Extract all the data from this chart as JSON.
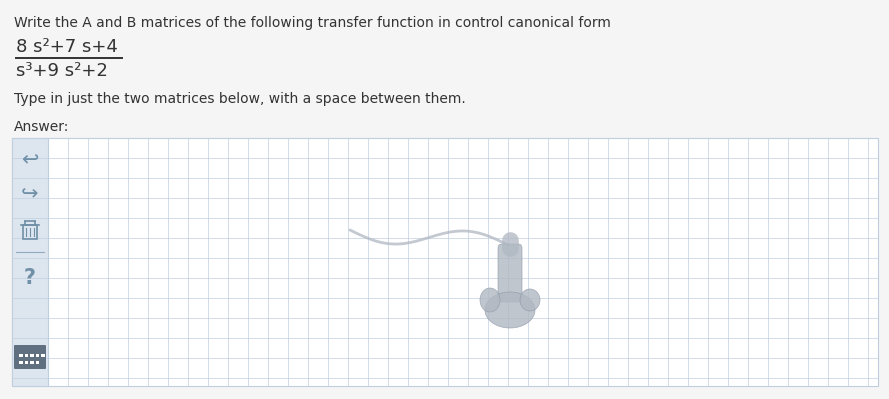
{
  "bg_color": "#f5f5f5",
  "text_color": "#333333",
  "question_text": "Write the A and B matrices of the following transfer function in control canonical form",
  "numerator": "8 s²+7 s+4",
  "denominator": "s³+9 s²+2",
  "instruction": "Type in just the two matrices below, with a space between them.",
  "answer_label": "Answer:",
  "grid_color": "#c0cfe0",
  "sidebar_color": "#dde6ef",
  "sidebar_dark": "#607080",
  "answer_bg": "#ffffff",
  "icon_color": "#7090a8",
  "frac_bar_color": "#333333",
  "cursor_color": "#b0b8c2",
  "cursor_edge": "#909aaa"
}
